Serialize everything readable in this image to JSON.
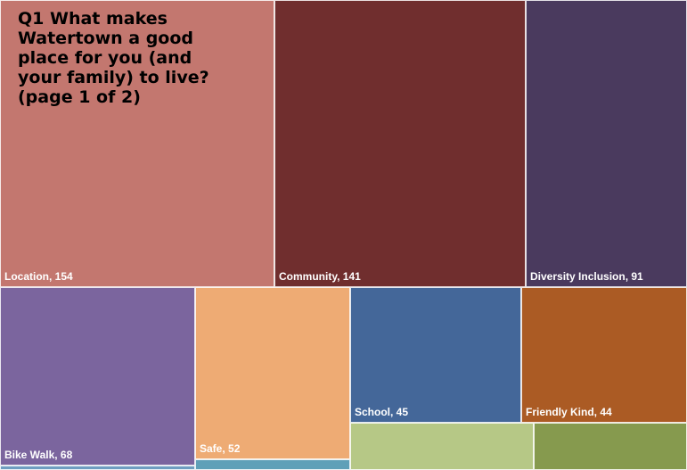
{
  "chart_data": {
    "type": "treemap",
    "title": "Q1 What makes Watertown a good place for you (and your family) to live? (page 1 of 2)",
    "items": [
      {
        "label": "Location, 154",
        "category": "Location",
        "value": 154,
        "color": "#c3776f"
      },
      {
        "label": "Community, 141",
        "category": "Community",
        "value": 141,
        "color": "#702e2e"
      },
      {
        "label": "Diversity Inclusion, 91",
        "category": "Diversity Inclusion",
        "value": 91,
        "color": "#4a3a5e"
      },
      {
        "label": "Bike Walk, 68",
        "category": "Bike Walk",
        "value": 68,
        "color": "#7b659e"
      },
      {
        "label": "Safe, 52",
        "category": "Safe",
        "value": 52,
        "color": "#eeab74"
      },
      {
        "label": "School, 45",
        "category": "School",
        "value": 45,
        "color": "#446799"
      },
      {
        "label": "Friendly Kind, 44",
        "category": "Friendly Kind",
        "value": 44,
        "color": "#ab5b24"
      },
      {
        "label": "",
        "category": "",
        "value": null,
        "color": "#b6c886"
      },
      {
        "label": "",
        "category": "",
        "value": null,
        "color": "#869a4e"
      },
      {
        "label": "",
        "category": "",
        "value": null,
        "color": "#5fa0b8"
      },
      {
        "label": "",
        "category": "",
        "value": null,
        "color": "#6f9ec0"
      }
    ]
  }
}
